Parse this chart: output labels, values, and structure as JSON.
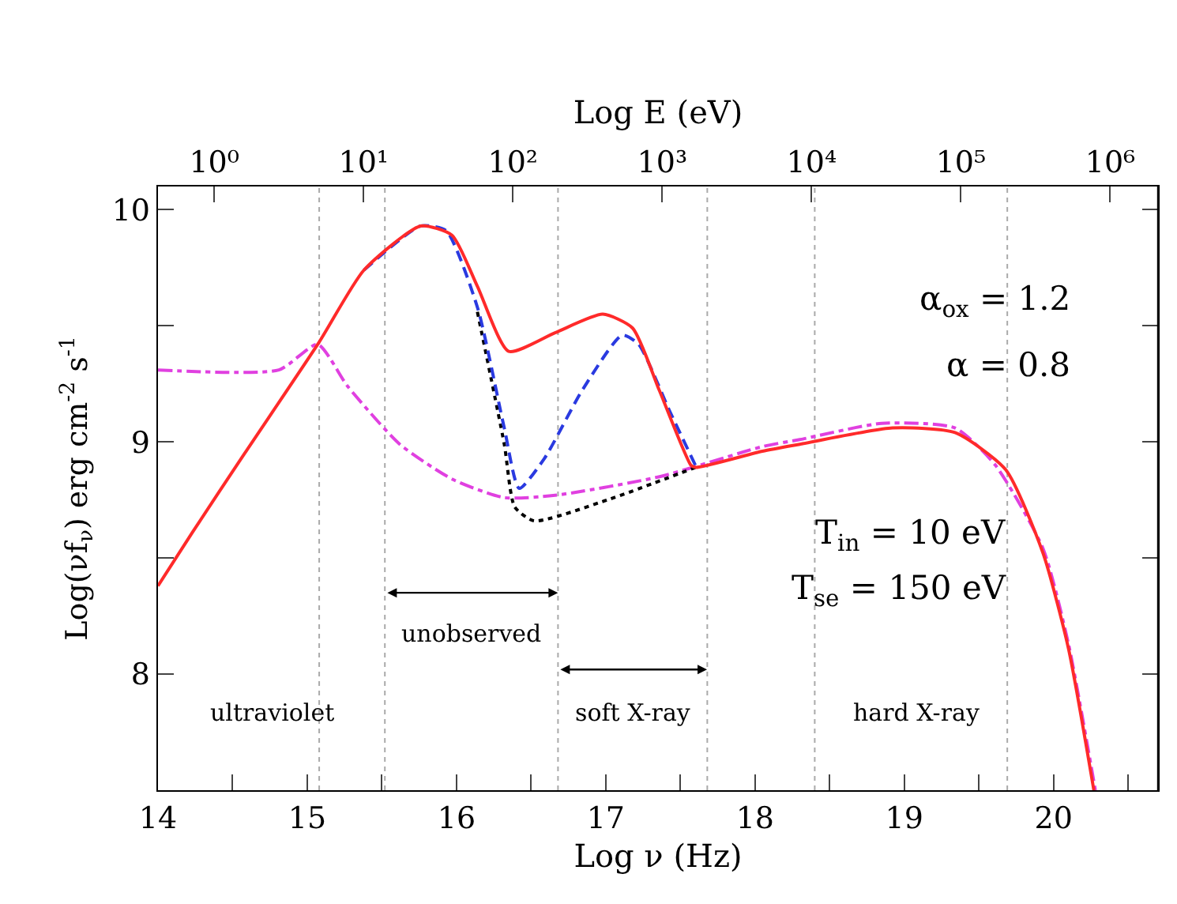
{
  "chart_data": {
    "type": "line",
    "xlabel": "Log ν (Hz)",
    "ylabel": "Log(νf$_{ν}$) erg cm$^{-2}$ s$^{-1}$",
    "x2label": "Log E (eV)",
    "xlim": [
      14,
      20.7
    ],
    "xticks": [
      14,
      {
        "value": 14.5,
        "label": null
      },
      15,
      {
        "value": 15.5,
        "label": null
      },
      16,
      {
        "value": 16.5,
        "label": null
      },
      17,
      {
        "value": 17.5,
        "label": null
      },
      18,
      {
        "value": 18.5,
        "label": null
      },
      19,
      {
        "value": 19.5,
        "label": null
      },
      20,
      {
        "value": 20.5,
        "label": null
      }
    ],
    "ylim": [
      7.5,
      10.1
    ],
    "yticks": [
      8,
      {
        "value": 8.5,
        "label": null
      },
      9,
      {
        "value": 9.5,
        "label": null
      },
      10
    ],
    "x2lim": [
      0.42,
      2090000
    ],
    "log": "x2",
    "x2ticks": [
      {
        "value": 1,
        "label": "10⁰"
      },
      {
        "value": 10,
        "label": "10¹"
      },
      {
        "value": 100,
        "label": "10²"
      },
      {
        "value": 1000,
        "label": "10³"
      },
      {
        "value": 10000,
        "label": "10⁴"
      },
      {
        "value": 100000,
        "label": "10⁵"
      },
      {
        "value": 1000000,
        "label": "10⁶"
      }
    ],
    "grid": false,
    "marker": "none",
    "series": [
      {
        "color": "#e040e0",
        "line_style": "dashdot",
        "x": [
          14.0,
          14.81,
          15.07,
          15.27,
          15.62,
          15.97,
          16.32,
          16.66,
          17.36,
          18.05,
          18.3,
          18.85,
          19.34,
          19.61,
          19.93,
          20.1,
          20.28
        ],
        "values": [
          9.31,
          9.31,
          9.42,
          9.24,
          8.99,
          8.84,
          8.76,
          8.77,
          8.85,
          8.98,
          9.01,
          9.08,
          9.06,
          8.9,
          8.54,
          8.13,
          7.5
        ]
      },
      {
        "color": "#000000",
        "line_style": "dotted",
        "x": [
          16.14,
          16.32,
          16.39,
          16.52,
          17.01,
          17.6
        ],
        "values": [
          9.56,
          8.99,
          8.72,
          8.66,
          8.75,
          8.89
        ]
      },
      {
        "color": "#2a3ae0",
        "line_style": "dashed",
        "x": [
          15.38,
          15.76,
          15.93,
          16.14,
          16.32,
          16.42,
          16.59,
          16.84,
          17.11,
          17.22,
          17.43,
          17.6
        ],
        "values": [
          9.74,
          9.93,
          9.91,
          9.58,
          9.06,
          8.8,
          8.93,
          9.22,
          9.46,
          9.42,
          9.13,
          8.9
        ]
      },
      {
        "color": "#ff2a2a",
        "line_style": "solid",
        "x": [
          14.0,
          14.23,
          14.58,
          15.08,
          15.38,
          15.76,
          15.97,
          16.14,
          16.35,
          16.66,
          16.98,
          17.18,
          17.36,
          17.57,
          17.6,
          18.05,
          18.3,
          18.92,
          19.34,
          19.68,
          19.93,
          20.1,
          20.27
        ],
        "values": [
          8.38,
          8.61,
          8.95,
          9.43,
          9.74,
          9.93,
          9.89,
          9.67,
          9.39,
          9.47,
          9.55,
          9.49,
          9.22,
          8.9,
          8.89,
          8.96,
          8.99,
          9.06,
          9.04,
          8.88,
          8.52,
          8.11,
          7.5
        ]
      }
    ],
    "ref_lines": [
      {
        "axis": "x",
        "value": 15.08,
        "color": "#aaaaaa",
        "line_style": "dotted"
      },
      {
        "axis": "x",
        "value": 15.52,
        "color": "#aaaaaa",
        "line_style": "dotted"
      },
      {
        "axis": "x",
        "value": 16.68,
        "color": "#aaaaaa",
        "line_style": "dotted"
      },
      {
        "axis": "x",
        "value": 17.68,
        "color": "#aaaaaa",
        "line_style": "dotted"
      },
      {
        "axis": "x",
        "value": 18.4,
        "color": "#aaaaaa",
        "line_style": "dotted"
      },
      {
        "axis": "x",
        "value": 19.69,
        "color": "#aaaaaa",
        "line_style": "dotted"
      }
    ],
    "annotations": [
      "ultraviolet",
      "unobserved",
      "soft X-ray",
      "hard X-ray",
      "α$_{ox}$ = 1.2",
      "α = 0.8",
      "T$_{in}$ = 10 eV",
      "T$_{se}$ = 150 eV"
    ]
  }
}
